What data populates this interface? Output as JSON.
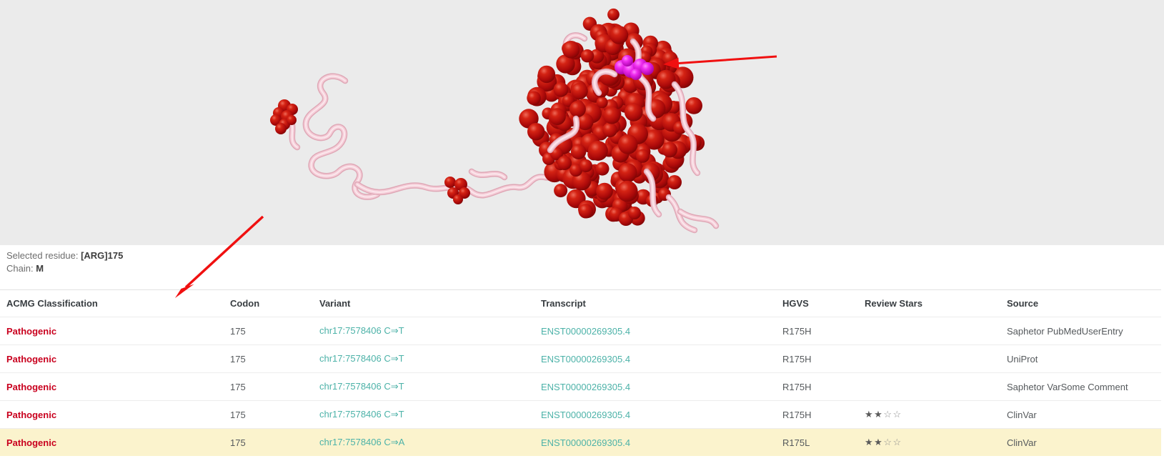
{
  "viewer": {
    "selected_residue_label": "Selected residue:",
    "selected_residue_value": "[ARG]175",
    "chain_label": "Chain:",
    "chain_value": "M"
  },
  "table": {
    "columns": [
      {
        "key": "classification",
        "label": "ACMG Classification"
      },
      {
        "key": "codon",
        "label": "Codon"
      },
      {
        "key": "variant",
        "label": "Variant"
      },
      {
        "key": "transcript",
        "label": "Transcript"
      },
      {
        "key": "hgvs",
        "label": "HGVS"
      },
      {
        "key": "stars",
        "label": "Review Stars"
      },
      {
        "key": "source",
        "label": "Source"
      }
    ],
    "rows": [
      {
        "classification": "Pathogenic",
        "codon": "175",
        "variant": "chr17:7578406 C⇒T",
        "transcript": "ENST00000269305.4",
        "hgvs": "R175H",
        "stars": null,
        "source": "Saphetor PubMedUserEntry",
        "highlighted": false
      },
      {
        "classification": "Pathogenic",
        "codon": "175",
        "variant": "chr17:7578406 C⇒T",
        "transcript": "ENST00000269305.4",
        "hgvs": "R175H",
        "stars": null,
        "source": "UniProt",
        "highlighted": false
      },
      {
        "classification": "Pathogenic",
        "codon": "175",
        "variant": "chr17:7578406 C⇒T",
        "transcript": "ENST00000269305.4",
        "hgvs": "R175H",
        "stars": null,
        "source": "Saphetor VarSome Comment",
        "highlighted": false
      },
      {
        "classification": "Pathogenic",
        "codon": "175",
        "variant": "chr17:7578406 C⇒T",
        "transcript": "ENST00000269305.4",
        "hgvs": "R175H",
        "stars": {
          "filled": 2,
          "empty": 2
        },
        "source": "ClinVar",
        "highlighted": false
      },
      {
        "classification": "Pathogenic",
        "codon": "175",
        "variant": "chr17:7578406 C⇒A",
        "transcript": "ENST00000269305.4",
        "hgvs": "R175L",
        "stars": {
          "filled": 2,
          "empty": 2
        },
        "source": "ClinVar",
        "highlighted": true
      }
    ]
  },
  "icons": {
    "star_filled_icon": "★",
    "star_empty_icon": "☆"
  },
  "colors": {
    "viewer_background": "#ebebeb",
    "pathogenic": "#c9001e",
    "link_teal": "#4cb2a8",
    "row_highlight": "#fbf3cd",
    "arrow_red": "#f01010",
    "sphere_red": "#b90d0d",
    "residue_magenta": "#e020e0",
    "ribbon_pink": "#f5cdd8"
  }
}
